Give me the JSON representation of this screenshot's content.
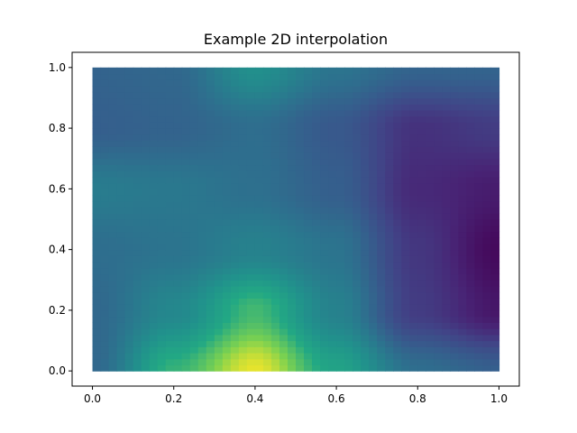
{
  "chart_data": {
    "type": "heatmap",
    "title": "Example 2D interpolation",
    "xlabel": "",
    "ylabel": "",
    "xlim": [
      -0.05,
      1.05
    ],
    "ylim": [
      -0.05,
      1.05
    ],
    "x_ticks": [
      "0.0",
      "0.2",
      "0.4",
      "0.6",
      "0.8",
      "1.0"
    ],
    "y_ticks": [
      "0.0",
      "0.2",
      "0.4",
      "0.6",
      "0.8",
      "1.0"
    ],
    "colormap": "viridis",
    "grid": false,
    "legend": "none",
    "grid_x": [
      0,
      0.2,
      0.4,
      0.6,
      0.8,
      1.0
    ],
    "grid_y": [
      0,
      0.2,
      0.4,
      0.6,
      0.8,
      1.0
    ],
    "values": [
      [
        0.42,
        0.78,
        0.98,
        0.72,
        0.45,
        0.38
      ],
      [
        0.42,
        0.58,
        0.8,
        0.55,
        0.22,
        0.08
      ],
      [
        0.45,
        0.48,
        0.55,
        0.48,
        0.2,
        0.03
      ],
      [
        0.52,
        0.5,
        0.46,
        0.38,
        0.15,
        0.1
      ],
      [
        0.38,
        0.4,
        0.45,
        0.35,
        0.18,
        0.22
      ],
      [
        0.4,
        0.42,
        0.62,
        0.48,
        0.4,
        0.4
      ]
    ]
  }
}
